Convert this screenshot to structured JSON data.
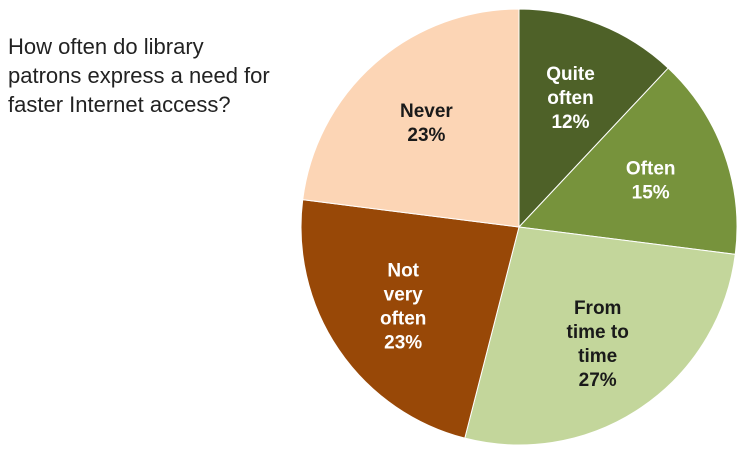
{
  "chart_data": {
    "type": "pie",
    "title_lines": [
      "How often do library",
      "patrons express a need for",
      "faster Internet access?"
    ],
    "categories": [
      "Quite often",
      "Often",
      "From time to time",
      "Not very often",
      "Never"
    ],
    "values": [
      12,
      15,
      27,
      23,
      23
    ],
    "slice_labels": [
      [
        "Quite",
        "often",
        "12%"
      ],
      [
        "Often",
        "15%"
      ],
      [
        "From",
        "time to",
        "time",
        "27%"
      ],
      [
        "Not",
        "very",
        "often",
        "23%"
      ],
      [
        "Never",
        "23%"
      ]
    ],
    "colors": [
      "#4e6128",
      "#77933c",
      "#c3d69b",
      "#984807",
      "#fcd5b5"
    ],
    "label_colors": [
      "#ffffff",
      "#ffffff",
      "#1a1a1a",
      "#ffffff",
      "#1a1a1a"
    ],
    "start_angle": "12 o'clock",
    "direction": "clockwise",
    "legend": "none"
  }
}
